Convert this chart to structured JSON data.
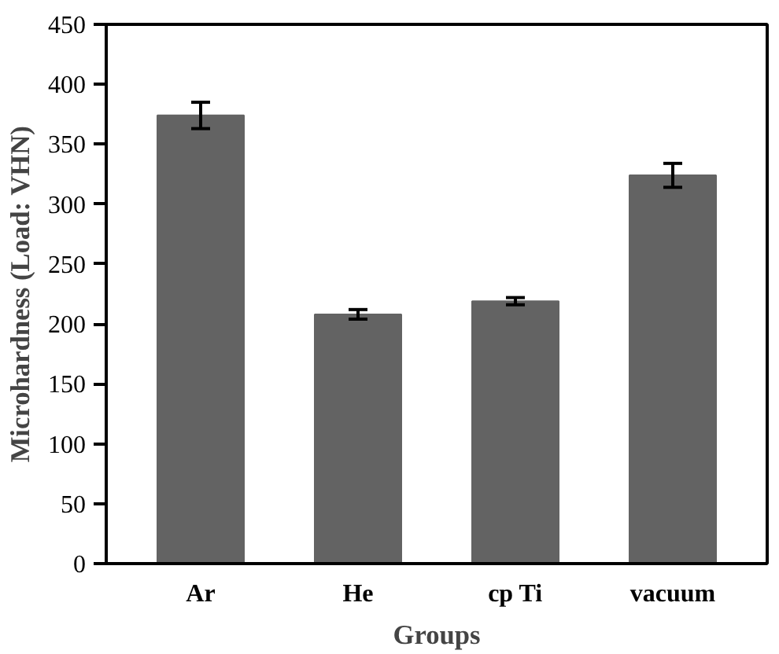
{
  "chart_data": {
    "type": "bar",
    "xlabel": "Groups",
    "ylabel": "Microhardness (Load: VHN)",
    "categories": [
      "Ar",
      "He",
      "cp Ti",
      "vacuum"
    ],
    "values": [
      374,
      208,
      219,
      324
    ],
    "errors": [
      11,
      4,
      3,
      10
    ],
    "color": "#636363",
    "ylim": [
      0,
      450
    ],
    "yticks": [
      0,
      50,
      100,
      150,
      200,
      250,
      300,
      350,
      400,
      450
    ],
    "grid": false
  }
}
